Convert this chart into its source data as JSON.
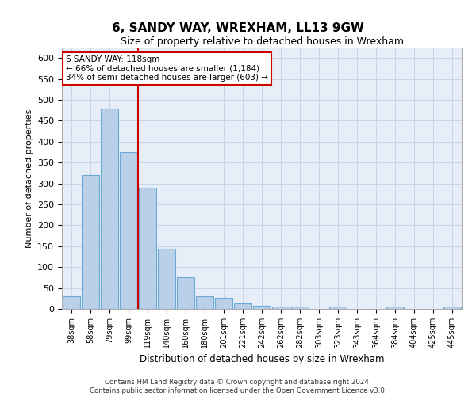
{
  "title": "6, SANDY WAY, WREXHAM, LL13 9GW",
  "subtitle": "Size of property relative to detached houses in Wrexham",
  "xlabel": "Distribution of detached houses by size in Wrexham",
  "ylabel": "Number of detached properties",
  "categories": [
    "38sqm",
    "58sqm",
    "79sqm",
    "99sqm",
    "119sqm",
    "140sqm",
    "160sqm",
    "180sqm",
    "201sqm",
    "221sqm",
    "242sqm",
    "262sqm",
    "282sqm",
    "303sqm",
    "323sqm",
    "343sqm",
    "364sqm",
    "384sqm",
    "404sqm",
    "425sqm",
    "445sqm"
  ],
  "values": [
    30,
    320,
    480,
    375,
    290,
    143,
    75,
    30,
    27,
    14,
    8,
    5,
    5,
    0,
    5,
    0,
    0,
    5,
    0,
    0,
    5
  ],
  "bar_color": "#b8d0e8",
  "bar_edge_color": "#6aaad4",
  "vline_position": 3.5,
  "vline_color": "#cc0000",
  "annotation_line1": "6 SANDY WAY: 118sqm",
  "annotation_line2": "← 66% of detached houses are smaller (1,184)",
  "annotation_line3": "34% of semi-detached houses are larger (603) →",
  "annotation_box_color": "#ffffff",
  "annotation_box_edge_color": "#cc0000",
  "footer1": "Contains HM Land Registry data © Crown copyright and database right 2024.",
  "footer2": "Contains public sector information licensed under the Open Government Licence v3.0.",
  "ylim": [
    0,
    625
  ],
  "yticks": [
    0,
    50,
    100,
    150,
    200,
    250,
    300,
    350,
    400,
    450,
    500,
    550,
    600
  ],
  "background_color": "#ffffff",
  "grid_color": "#c8d4e8",
  "axes_bg_color": "#e8eef8"
}
